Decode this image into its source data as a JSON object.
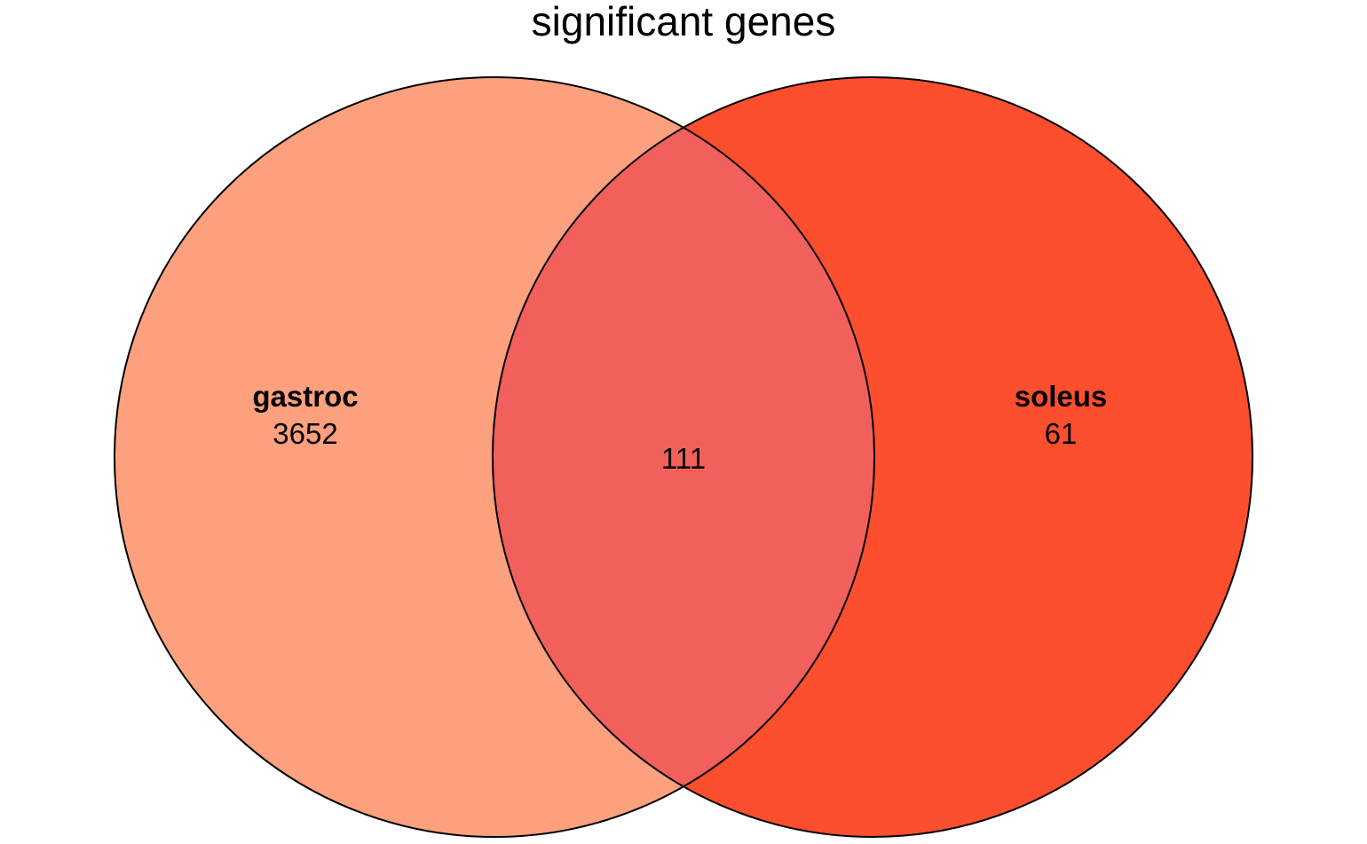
{
  "chart_data": {
    "type": "venn",
    "title": "significant genes",
    "sets": [
      {
        "name": "gastroc",
        "only_count": "3652",
        "color": "#FCA07E"
      },
      {
        "name": "soleus",
        "only_count": "61",
        "color": "#FD4E2E"
      }
    ],
    "intersection": {
      "count": "111",
      "color": "#F2605C"
    },
    "outline_color": "#000000"
  }
}
